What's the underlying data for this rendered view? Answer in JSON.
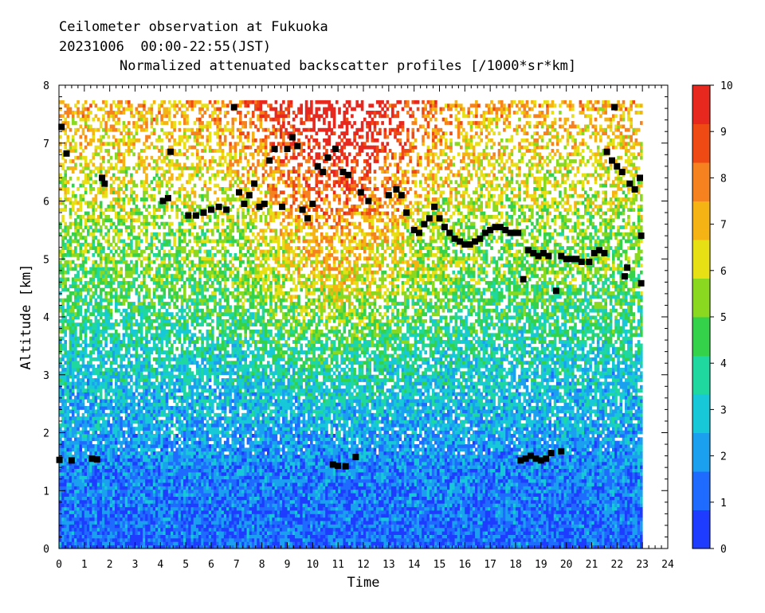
{
  "header": {
    "line1": "Ceilometer observation at Fukuoka",
    "line2": "20231006  00:00-22:55(JST)",
    "line3": "Normalized attenuated backscatter profiles [/1000*sr*km]"
  },
  "chart_data": {
    "type": "heatmap",
    "title": "Normalized attenuated backscatter profiles [/1000*sr*km]",
    "xlabel": "Time",
    "ylabel": "Altitude [km]",
    "xlim": [
      0,
      24
    ],
    "ylim": [
      0,
      8
    ],
    "x_ticks": [
      "0",
      "1",
      "2",
      "3",
      "4",
      "5",
      "6",
      "7",
      "8",
      "9",
      "10",
      "11",
      "12",
      "13",
      "14",
      "15",
      "16",
      "17",
      "18",
      "19",
      "20",
      "21",
      "22",
      "23",
      "24"
    ],
    "y_ticks": [
      "0",
      "1",
      "2",
      "3",
      "4",
      "5",
      "6",
      "7",
      "8"
    ],
    "data_time_range": [
      0,
      22.92
    ],
    "data_altitude_max": 7.7,
    "colorbar": {
      "min": 0,
      "max": 10,
      "ticks": [
        "0",
        "1",
        "2",
        "3",
        "4",
        "5",
        "6",
        "7",
        "8",
        "9",
        "10"
      ],
      "colors": [
        "#1e3cff",
        "#1f6bff",
        "#1ba0f0",
        "#16c8d8",
        "#1ed8a0",
        "#34d24a",
        "#8ad820",
        "#e6e014",
        "#f5b414",
        "#f5821e",
        "#f04a14",
        "#e6281e"
      ]
    },
    "cloud_base_color": "#000000",
    "cloud_base_points": [
      [
        0.1,
        7.28
      ],
      [
        0.3,
        6.82
      ],
      [
        0.5,
        1.52
      ],
      [
        0.02,
        1.53
      ],
      [
        1.3,
        1.55
      ],
      [
        1.5,
        1.54
      ],
      [
        1.7,
        6.4
      ],
      [
        1.8,
        6.3
      ],
      [
        4.1,
        6.0
      ],
      [
        4.3,
        6.05
      ],
      [
        4.4,
        6.85
      ],
      [
        5.1,
        5.75
      ],
      [
        5.4,
        5.75
      ],
      [
        5.7,
        5.8
      ],
      [
        6.0,
        5.85
      ],
      [
        6.3,
        5.9
      ],
      [
        6.6,
        5.85
      ],
      [
        6.9,
        7.62
      ],
      [
        7.1,
        6.15
      ],
      [
        7.3,
        5.95
      ],
      [
        7.5,
        6.1
      ],
      [
        7.7,
        6.3
      ],
      [
        7.9,
        5.9
      ],
      [
        8.1,
        5.95
      ],
      [
        8.3,
        6.7
      ],
      [
        8.5,
        6.9
      ],
      [
        8.8,
        5.9
      ],
      [
        9.0,
        6.9
      ],
      [
        9.2,
        7.1
      ],
      [
        9.4,
        6.95
      ],
      [
        9.6,
        5.85
      ],
      [
        9.8,
        5.7
      ],
      [
        10.0,
        5.95
      ],
      [
        10.2,
        6.6
      ],
      [
        10.4,
        6.5
      ],
      [
        10.6,
        6.75
      ],
      [
        10.9,
        6.9
      ],
      [
        11.2,
        6.5
      ],
      [
        11.4,
        6.45
      ],
      [
        10.8,
        1.45
      ],
      [
        11.0,
        1.43
      ],
      [
        11.3,
        1.42
      ],
      [
        11.7,
        1.58
      ],
      [
        11.9,
        6.15
      ],
      [
        12.2,
        6.0
      ],
      [
        13.0,
        6.1
      ],
      [
        13.3,
        6.2
      ],
      [
        13.5,
        6.1
      ],
      [
        13.7,
        5.8
      ],
      [
        14.0,
        5.5
      ],
      [
        14.2,
        5.45
      ],
      [
        14.4,
        5.6
      ],
      [
        14.6,
        5.7
      ],
      [
        14.8,
        5.9
      ],
      [
        15.0,
        5.7
      ],
      [
        15.2,
        5.55
      ],
      [
        15.4,
        5.45
      ],
      [
        15.6,
        5.35
      ],
      [
        15.8,
        5.3
      ],
      [
        16.0,
        5.25
      ],
      [
        16.2,
        5.25
      ],
      [
        16.4,
        5.3
      ],
      [
        16.6,
        5.35
      ],
      [
        16.8,
        5.45
      ],
      [
        17.0,
        5.5
      ],
      [
        17.2,
        5.55
      ],
      [
        17.4,
        5.55
      ],
      [
        17.6,
        5.5
      ],
      [
        17.8,
        5.45
      ],
      [
        18.0,
        5.45
      ],
      [
        18.2,
        1.52
      ],
      [
        18.4,
        1.55
      ],
      [
        18.6,
        1.6
      ],
      [
        18.8,
        1.55
      ],
      [
        19.0,
        1.52
      ],
      [
        19.2,
        1.55
      ],
      [
        18.3,
        4.65
      ],
      [
        18.5,
        5.15
      ],
      [
        18.7,
        5.1
      ],
      [
        18.9,
        5.05
      ],
      [
        19.1,
        5.1
      ],
      [
        19.3,
        5.05
      ],
      [
        19.6,
        4.45
      ],
      [
        19.8,
        5.05
      ],
      [
        20.0,
        5.0
      ],
      [
        20.2,
        5.0
      ],
      [
        20.4,
        5.0
      ],
      [
        20.6,
        4.95
      ],
      [
        20.9,
        4.95
      ],
      [
        21.1,
        5.1
      ],
      [
        21.3,
        5.15
      ],
      [
        21.5,
        5.1
      ],
      [
        21.6,
        6.85
      ],
      [
        21.8,
        6.7
      ],
      [
        21.9,
        7.62
      ],
      [
        22.0,
        6.6
      ],
      [
        22.2,
        6.5
      ],
      [
        22.3,
        4.7
      ],
      [
        22.4,
        4.85
      ],
      [
        22.5,
        6.3
      ],
      [
        22.7,
        6.2
      ],
      [
        22.9,
        6.4
      ],
      [
        22.95,
        5.4
      ],
      [
        22.95,
        4.58
      ],
      [
        19.4,
        1.65
      ],
      [
        19.8,
        1.68
      ],
      [
        18.1,
        5.45
      ]
    ]
  }
}
